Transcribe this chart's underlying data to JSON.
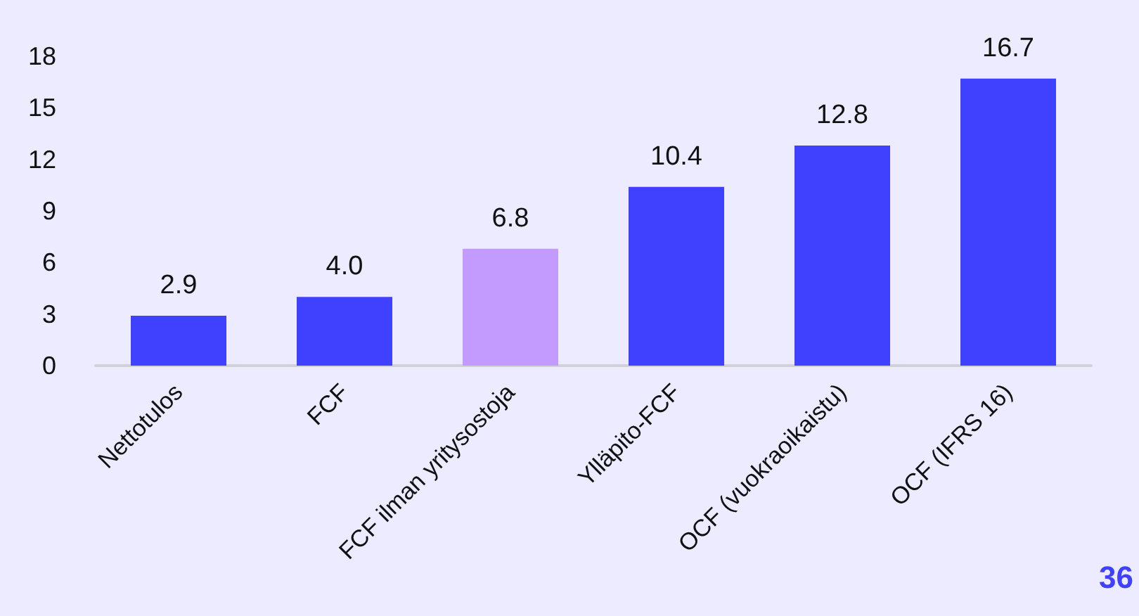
{
  "chart_data": {
    "type": "bar",
    "categories": [
      "Nettotulos",
      "FCF",
      "FCF ilman yritysostoja",
      "Ylläpito-FCF",
      "OCF (vuokraoikaistu)",
      "OCF (IFRS 16)"
    ],
    "values": [
      2.9,
      4.0,
      6.8,
      10.4,
      12.8,
      16.7
    ],
    "colors": [
      "#4040ff",
      "#4040ff",
      "#c39bff",
      "#4040ff",
      "#4040ff",
      "#4040ff"
    ],
    "value_labels": [
      "2.9",
      "4.0",
      "6.8",
      "10.4",
      "12.8",
      "16.7"
    ],
    "ylim": [
      0,
      18
    ],
    "yticks": [
      0,
      3,
      6,
      9,
      12,
      15,
      18
    ],
    "grid": false,
    "annotations": [
      "36"
    ]
  }
}
